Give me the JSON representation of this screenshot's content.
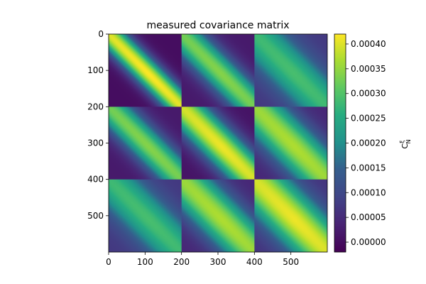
{
  "chart_data": {
    "type": "heatmap",
    "title": "measured covariance matrix",
    "colorbar_label": "C_N^ξ",
    "colormap": "viridis",
    "matrix_size": 600,
    "block_size": 200,
    "x_range": [
      0,
      600
    ],
    "y_range": [
      0,
      600
    ],
    "y_axis_direction": "top-to-bottom",
    "x_ticks": [
      0,
      100,
      200,
      300,
      400,
      500
    ],
    "y_ticks": [
      0,
      100,
      200,
      300,
      400,
      500
    ],
    "x_tick_labels": [
      "0",
      "100",
      "200",
      "300",
      "400",
      "500"
    ],
    "y_tick_labels": [
      "0",
      "100",
      "200",
      "300",
      "400",
      "500"
    ],
    "color_range": [
      -2e-05,
      0.00042
    ],
    "colorbar_ticks": [
      0.0,
      5e-05,
      0.0001,
      0.00015,
      0.0002,
      0.00025,
      0.0003,
      0.00035,
      0.0004
    ],
    "colorbar_tick_labels": [
      "0.00000",
      "0.00005",
      "0.00010",
      "0.00015",
      "0.00020",
      "0.00025",
      "0.00030",
      "0.00035",
      "0.00040"
    ],
    "blocks": [
      {
        "row": 0,
        "col": 0,
        "diag_value": 0.00042,
        "offdiag_min": 0.0,
        "width": 35
      },
      {
        "row": 0,
        "col": 1,
        "diag_value": 0.00034,
        "offdiag_min": 2e-05,
        "width": 45
      },
      {
        "row": 0,
        "col": 2,
        "diag_value": 0.00029,
        "offdiag_min": 7e-05,
        "width": 60
      },
      {
        "row": 1,
        "col": 0,
        "diag_value": 0.00034,
        "offdiag_min": 2e-05,
        "width": 45
      },
      {
        "row": 1,
        "col": 1,
        "diag_value": 0.00041,
        "offdiag_min": 1e-05,
        "width": 50
      },
      {
        "row": 1,
        "col": 2,
        "diag_value": 0.00037,
        "offdiag_min": 4e-05,
        "width": 60
      },
      {
        "row": 2,
        "col": 0,
        "diag_value": 0.00029,
        "offdiag_min": 7e-05,
        "width": 60
      },
      {
        "row": 2,
        "col": 1,
        "diag_value": 0.00037,
        "offdiag_min": 4e-05,
        "width": 60
      },
      {
        "row": 2,
        "col": 2,
        "diag_value": 0.00041,
        "offdiag_min": 6e-05,
        "width": 65
      }
    ]
  }
}
